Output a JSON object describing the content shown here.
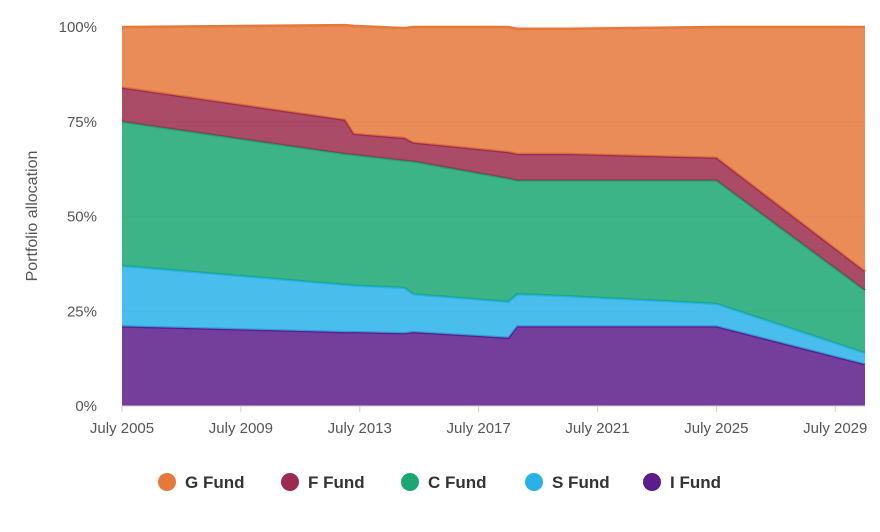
{
  "chart_data": {
    "type": "area",
    "stacked": true,
    "ylabel": "Portfolio allocation",
    "xlabel": "",
    "x": [
      2005.5,
      2013.0,
      2013.3,
      2015.0,
      2015.3,
      2018.5,
      2018.8,
      2020.5,
      2025.5,
      2030.5
    ],
    "x_ticks": [
      "July 2005",
      "July 2009",
      "July 2013",
      "July 2017",
      "July 2021",
      "July 2025",
      "July 2029"
    ],
    "y_ticks": [
      "0%",
      "25%",
      "50%",
      "75%",
      "100%"
    ],
    "ylim": [
      0,
      100
    ],
    "legend_position": "bottom",
    "series": [
      {
        "name": "G Fund",
        "color": "#E5783A",
        "values": [
          16,
          25,
          28.5,
          29,
          30.5,
          33,
          33,
          33,
          34.5,
          64.5
        ]
      },
      {
        "name": "F Fund",
        "color": "#9B2C4E",
        "values": [
          9,
          9,
          5.5,
          6,
          5,
          7,
          7,
          7,
          6,
          5
        ]
      },
      {
        "name": "C Fund",
        "color": "#1BA772",
        "values": [
          38,
          34.5,
          34.5,
          33.5,
          35,
          32.5,
          30,
          30.5,
          32.5,
          16.5
        ]
      },
      {
        "name": "S Fund",
        "color": "#29B1E8",
        "values": [
          16,
          12.5,
          12.3,
          12,
          10,
          9.5,
          8.5,
          8,
          6,
          3
        ]
      },
      {
        "name": "I Fund",
        "color": "#5C1C8A",
        "values": [
          21,
          19.5,
          19.5,
          19.2,
          19.5,
          18,
          21,
          21,
          21,
          11
        ]
      }
    ]
  }
}
